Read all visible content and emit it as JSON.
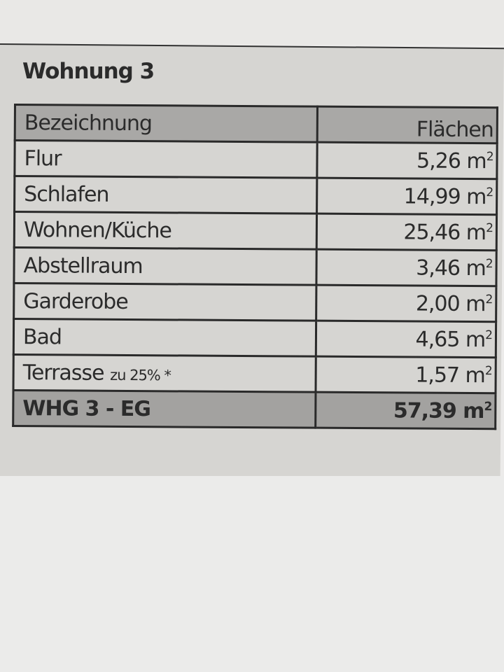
{
  "title": "Wohnung 3",
  "table": {
    "headers": [
      "Bezeichnung",
      "Flächen"
    ],
    "rows": [
      {
        "name": "Flur",
        "area": "5,26 m",
        "unit_sup": "2"
      },
      {
        "name": "Schlafen",
        "area": "14,99 m",
        "unit_sup": "2"
      },
      {
        "name": "Wohnen/Küche",
        "area": "25,46 m",
        "unit_sup": "2"
      },
      {
        "name": "Abstellraum",
        "area": "3,46 m",
        "unit_sup": "2"
      },
      {
        "name": "Garderobe",
        "area": "2,00 m",
        "unit_sup": "2"
      },
      {
        "name": "Bad",
        "area": "4,65 m",
        "unit_sup": "2"
      },
      {
        "name": "Terrasse",
        "note": "zu 25% *",
        "area": "1,57 m",
        "unit_sup": "2"
      }
    ],
    "total": {
      "name": "WHG 3 - EG",
      "area": "57,39 m",
      "unit_sup": "2"
    }
  }
}
